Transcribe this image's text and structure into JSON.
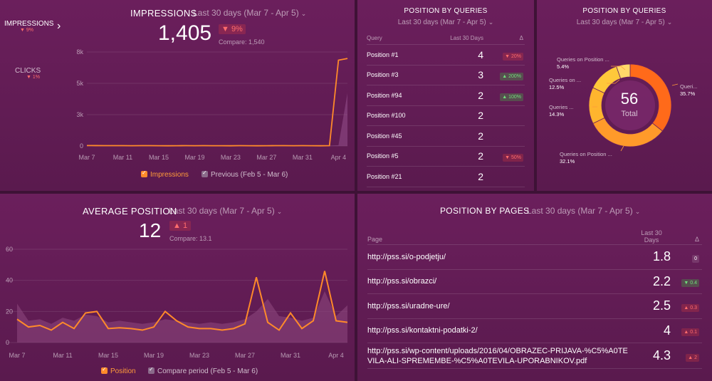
{
  "impressions": {
    "title": "IMPRESSIONS",
    "range": "Last 30 days (Mar 7 - Apr 5)",
    "value": "1,405",
    "change": "▼ 9%",
    "compare": "Compare: 1,540",
    "side": [
      {
        "label": "IMPRESSIONS",
        "delta": "▼ 9%"
      },
      {
        "label": "CLICKS",
        "delta": "▼ 1%"
      }
    ],
    "legend": [
      "Impressions",
      "Previous (Feb 5 - Mar 6)"
    ]
  },
  "position_queries": {
    "title": "POSITION BY QUERIES",
    "range": "Last 30 days (Mar 7 - Apr 5)",
    "headers": [
      "Query",
      "Last 30 Days",
      "Δ"
    ],
    "rows": [
      {
        "query": "Position #1",
        "value": "4",
        "delta": "▼ 20%",
        "dir": "down"
      },
      {
        "query": "Position #3",
        "value": "3",
        "delta": "▲ 200%",
        "dir": "up"
      },
      {
        "query": "Position #94",
        "value": "2",
        "delta": "▲ 100%",
        "dir": "up"
      },
      {
        "query": "Position #100",
        "value": "2",
        "delta": "",
        "dir": ""
      },
      {
        "query": "Position #45",
        "value": "2",
        "delta": "",
        "dir": ""
      },
      {
        "query": "Position #5",
        "value": "2",
        "delta": "▼ 50%",
        "dir": "down"
      },
      {
        "query": "Position #21",
        "value": "2",
        "delta": "",
        "dir": ""
      }
    ]
  },
  "donut": {
    "title": "POSITION BY QUERIES",
    "range": "Last 30 days (Mar 7 - Apr 5)",
    "total": "56",
    "total_label": "Total",
    "labels": {
      "a": {
        "name": "Queries on Position ...",
        "pct": "5.4%"
      },
      "b": {
        "name": "Queries on ...",
        "pct": "12.5%"
      },
      "c": {
        "name": "Queries ...",
        "pct": "14.3%"
      },
      "d": {
        "name": "Queries on Position ...",
        "pct": "32.1%"
      },
      "e": {
        "name": "Queri...",
        "pct": "35.7%"
      }
    }
  },
  "avg_position": {
    "title": "AVERAGE POSITION",
    "range": "Last 30 days (Mar 7 - Apr 5)",
    "value": "12",
    "change": "▲ 1",
    "compare": "Compare: 13.1",
    "legend": [
      "Position",
      "Compare period (Feb 5 - Mar 6)"
    ]
  },
  "pages": {
    "title": "POSITION BY PAGES",
    "range": "Last 30 days (Mar 7 - Apr 5)",
    "headers": [
      "Page",
      "Last 30\nDays",
      "Δ"
    ],
    "rows": [
      {
        "page": "http://pss.si/o-podjetju/",
        "value": "1.8",
        "delta": "0",
        "dir": "neutral"
      },
      {
        "page": "http://pss.si/obrazci/",
        "value": "2.2",
        "delta": "▼ 0.4",
        "dir": "up"
      },
      {
        "page": "http://pss.si/uradne-ure/",
        "value": "2.5",
        "delta": "▲ 0.3",
        "dir": "down"
      },
      {
        "page": "http://pss.si/kontaktni-podatki-2/",
        "value": "4",
        "delta": "▲ 0.1",
        "dir": "down"
      },
      {
        "page": "http://pss.si/wp-content/uploads/2016/04/OBRAZEC-PRIJAVA-%C5%A0TEVILA-ALI-SPREMEMBE-%C5%A0TEVILA-UPORABNIKOV.pdf",
        "value": "4.3",
        "delta": "▲ 2",
        "dir": "down"
      }
    ]
  },
  "chart_data": [
    {
      "type": "area",
      "title": "IMPRESSIONS",
      "x_ticks": [
        "Mar 7",
        "Mar 11",
        "Mar 15",
        "Mar 19",
        "Mar 23",
        "Mar 27",
        "Mar 31",
        "Apr 4"
      ],
      "y_ticks": [
        "0",
        "3k",
        "5k",
        "8k"
      ],
      "ylim": [
        0,
        8000
      ],
      "series": [
        {
          "name": "Impressions",
          "values": [
            40,
            35,
            30,
            30,
            30,
            25,
            30,
            30,
            25,
            20,
            25,
            30,
            25,
            30,
            25,
            25,
            20,
            30,
            25,
            20,
            25,
            30,
            30,
            25,
            30,
            25,
            20,
            30,
            7300,
            7450
          ]
        },
        {
          "name": "Previous (Feb 5 - Mar 6)",
          "values": [
            40,
            35,
            30,
            30,
            30,
            25,
            30,
            30,
            25,
            20,
            25,
            30,
            25,
            30,
            25,
            25,
            20,
            30,
            25,
            20,
            25,
            30,
            30,
            25,
            30,
            25,
            20,
            30,
            60,
            4500
          ]
        }
      ],
      "colors": {
        "primary": "#ff8a2a",
        "previous": "#9a5a8a"
      }
    },
    {
      "type": "line",
      "title": "AVERAGE POSITION",
      "x_ticks": [
        "Mar 7",
        "Mar 11",
        "Mar 15",
        "Mar 19",
        "Mar 23",
        "Mar 27",
        "Mar 31",
        "Apr 4"
      ],
      "y_ticks": [
        "0",
        "20",
        "40",
        "60"
      ],
      "ylim": [
        0,
        60
      ],
      "series": [
        {
          "name": "Position",
          "values": [
            15,
            10,
            11,
            8,
            13,
            9,
            19,
            20,
            9,
            9.5,
            9,
            8,
            10,
            20,
            14,
            10,
            9,
            9,
            8,
            9,
            12,
            42,
            13,
            8,
            19,
            9,
            14,
            46,
            14,
            13
          ]
        },
        {
          "name": "Compare period (Feb 5 - Mar 6)",
          "values": [
            25,
            14,
            15,
            12,
            16,
            14,
            18,
            17,
            13,
            14,
            13,
            12,
            13,
            15,
            14,
            13,
            12,
            13,
            12,
            13,
            15,
            20,
            28,
            17,
            16,
            14,
            16,
            33,
            17,
            24
          ]
        }
      ],
      "colors": {
        "primary": "#ff8a2a",
        "previous": "#8a4a7a"
      }
    },
    {
      "type": "pie",
      "title": "POSITION BY QUERIES",
      "total": 56,
      "slices": [
        {
          "label": "Queries on Position ...",
          "value": 35.7,
          "color": "#ff6a1a"
        },
        {
          "label": "Queries on Position ...",
          "value": 32.1,
          "color": "#ff9a2a"
        },
        {
          "label": "Queries ...",
          "value": 14.3,
          "color": "#ffb52e"
        },
        {
          "label": "Queries on ...",
          "value": 12.5,
          "color": "#ffc83a"
        },
        {
          "label": "Queries on Position ...",
          "value": 5.4,
          "color": "#ffd86a"
        }
      ]
    }
  ]
}
